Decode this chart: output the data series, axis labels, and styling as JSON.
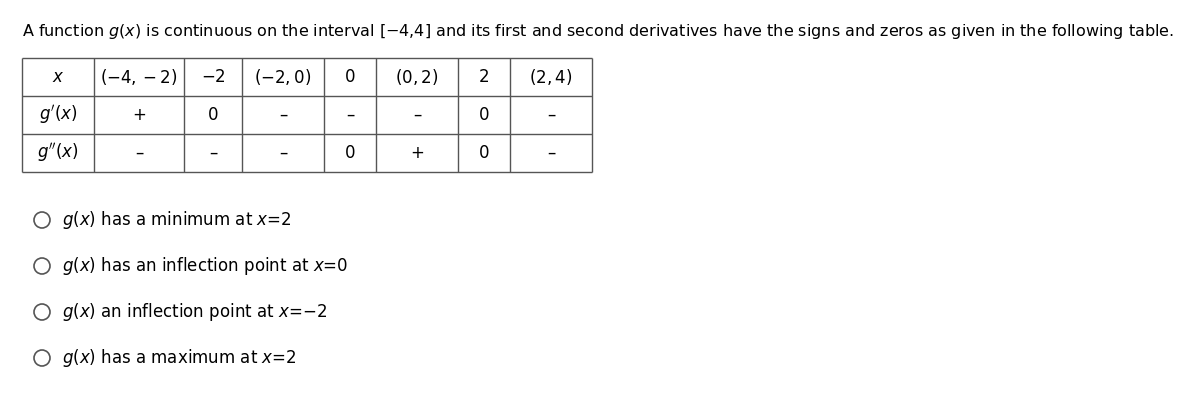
{
  "title_text": "A function $g(x)$ is continuous on the interval [−4,4] and its first and second derivatives have the signs and zeros as given in the following table.",
  "col_headers": [
    "$x$",
    "$(-4,-2)$",
    "$-2$",
    "$(-2,0)$",
    "$0$",
    "$(0,2)$",
    "$2$",
    "$(2,4)$"
  ],
  "row_labels": [
    "$g'(x)$",
    "$g''(x)$"
  ],
  "row_values": [
    [
      "+",
      "0",
      "–",
      "–",
      "–",
      "0",
      "–"
    ],
    [
      "–",
      "–",
      "–",
      "0",
      "+",
      "0",
      "–"
    ]
  ],
  "options": [
    "$g(x)$ has a minimum at $x$=2",
    "$g(x)$ has an inflection point at $x$=0",
    "$g(x)$ an inflection point at $x$=−2",
    "$g(x)$ has a maximum at $x$=2"
  ],
  "bg_color": "#ffffff",
  "text_color": "#000000",
  "title_fontsize": 11.5,
  "option_fontsize": 12,
  "table_fontsize": 12
}
